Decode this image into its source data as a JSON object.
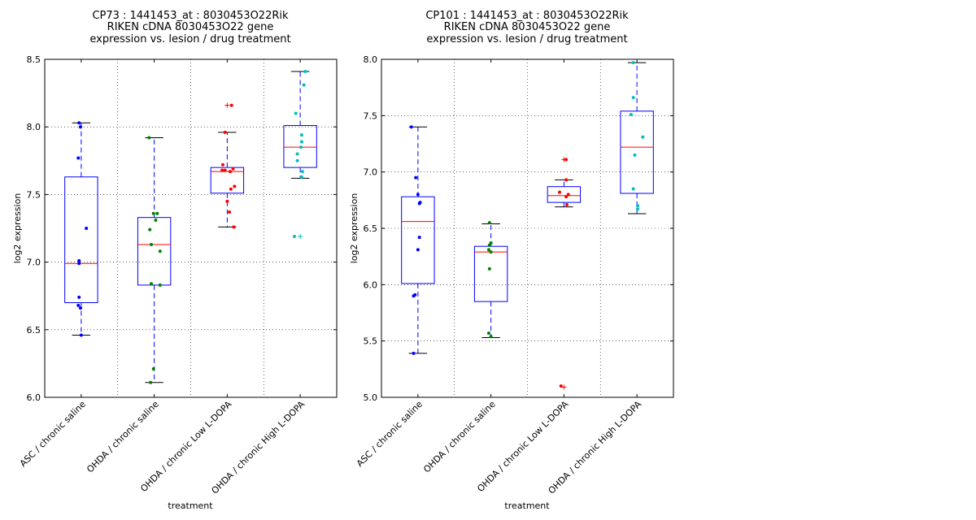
{
  "charts": [
    {
      "type": "box",
      "title_lines": [
        "CP73 : 1441453_at : 8030453O22Rik",
        "RIKEN cDNA 8030453O22 gene",
        "expression vs. lesion / drug treatment"
      ],
      "xlabel": "treatment",
      "ylabel": "log2 expression",
      "ylim": [
        6.0,
        8.5
      ],
      "yticks": [
        6.0,
        6.5,
        7.0,
        7.5,
        8.0,
        8.5
      ],
      "ytick_labels": [
        "6.0",
        "6.5",
        "7.0",
        "7.5",
        "8.0",
        "8.5"
      ],
      "grid": true,
      "categories": [
        "ASC / chronic saline",
        "OHDA / chronic saline",
        "OHDA / chronic Low L-DOPA",
        "OHDA / chronic High L-DOPA"
      ],
      "colors": [
        "#0000ff",
        "#008000",
        "#ff0000",
        "#00bfbf"
      ],
      "boxes": [
        {
          "whisker_low": 6.46,
          "q1": 6.7,
          "median": 6.99,
          "q3": 7.63,
          "whisker_high": 8.03,
          "outliers": []
        },
        {
          "whisker_low": 6.11,
          "q1": 6.83,
          "median": 7.13,
          "q3": 7.33,
          "whisker_high": 7.92,
          "outliers": []
        },
        {
          "whisker_low": 7.26,
          "q1": 7.51,
          "median": 7.67,
          "q3": 7.7,
          "whisker_high": 7.96,
          "outliers": [
            8.16
          ]
        },
        {
          "whisker_low": 7.62,
          "q1": 7.7,
          "median": 7.85,
          "q3": 8.01,
          "whisker_high": 8.41,
          "outliers": [
            7.19
          ]
        }
      ],
      "points": [
        [
          [
            -0.03,
            8.03
          ],
          [
            -0.01,
            8.0
          ],
          [
            -0.04,
            7.77
          ],
          [
            0.07,
            7.25
          ],
          [
            -0.03,
            7.01
          ],
          [
            -0.03,
            6.99
          ],
          [
            -0.03,
            6.74
          ],
          [
            -0.04,
            6.68
          ],
          [
            -0.01,
            6.66
          ],
          [
            0.0,
            6.46
          ]
        ],
        [
          [
            -0.07,
            7.92
          ],
          [
            -0.01,
            7.36
          ],
          [
            0.04,
            7.36
          ],
          [
            0.02,
            7.31
          ],
          [
            -0.06,
            7.24
          ],
          [
            -0.04,
            7.13
          ],
          [
            0.08,
            7.08
          ],
          [
            -0.04,
            6.84
          ],
          [
            0.08,
            6.83
          ],
          [
            -0.01,
            6.21
          ],
          [
            -0.05,
            6.11
          ]
        ],
        [
          [
            0.06,
            8.16
          ],
          [
            -0.03,
            7.96
          ],
          [
            -0.06,
            7.72
          ],
          [
            -0.07,
            7.68
          ],
          [
            -0.03,
            7.68
          ],
          [
            0.04,
            7.67
          ],
          [
            0.08,
            7.69
          ],
          [
            0.1,
            7.56
          ],
          [
            0.05,
            7.54
          ],
          [
            0.0,
            7.45
          ],
          [
            0.03,
            7.37
          ],
          [
            0.09,
            7.26
          ]
        ],
        [
          [
            0.07,
            8.41
          ],
          [
            0.05,
            8.31
          ],
          [
            -0.06,
            8.1
          ],
          [
            0.02,
            7.94
          ],
          [
            0.02,
            7.89
          ],
          [
            0.01,
            7.85
          ],
          [
            -0.04,
            7.8
          ],
          [
            -0.04,
            7.75
          ],
          [
            0.03,
            7.67
          ],
          [
            0.02,
            7.63
          ],
          [
            -0.08,
            7.19
          ]
        ]
      ]
    },
    {
      "type": "box",
      "title_lines": [
        "CP101 : 1441453_at : 8030453O22Rik",
        "RIKEN cDNA 8030453O22 gene",
        "expression vs. lesion / drug treatment"
      ],
      "xlabel": "treatment",
      "ylabel": "log2 expression",
      "ylim": [
        5.0,
        8.0
      ],
      "yticks": [
        5.0,
        5.5,
        6.0,
        6.5,
        7.0,
        7.5,
        8.0
      ],
      "ytick_labels": [
        "5.0",
        "5.5",
        "6.0",
        "6.5",
        "7.0",
        "7.5",
        "8.0"
      ],
      "grid": true,
      "categories": [
        "ASC / chronic saline",
        "OHDA / chronic saline",
        "OHDA / chronic Low L-DOPA",
        "OHDA / chronic High L-DOPA"
      ],
      "colors": [
        "#0000ff",
        "#008000",
        "#ff0000",
        "#00bfbf"
      ],
      "boxes": [
        {
          "whisker_low": 5.39,
          "q1": 6.01,
          "median": 6.56,
          "q3": 6.78,
          "whisker_high": 7.4,
          "outliers": []
        },
        {
          "whisker_low": 5.53,
          "q1": 5.85,
          "median": 6.29,
          "q3": 6.34,
          "whisker_high": 6.54,
          "outliers": []
        },
        {
          "whisker_low": 6.69,
          "q1": 6.73,
          "median": 6.79,
          "q3": 6.87,
          "whisker_high": 6.93,
          "outliers": [
            7.11,
            5.09
          ]
        },
        {
          "whisker_low": 6.63,
          "q1": 6.81,
          "median": 7.22,
          "q3": 7.54,
          "whisker_high": 7.97,
          "outliers": []
        }
      ],
      "points": [
        [
          [
            -0.09,
            7.4
          ],
          [
            -0.03,
            6.95
          ],
          [
            0.0,
            6.8
          ],
          [
            0.03,
            6.73
          ],
          [
            0.02,
            6.72
          ],
          [
            0.02,
            6.42
          ],
          [
            0.0,
            6.31
          ],
          [
            -0.04,
            5.91
          ],
          [
            -0.06,
            5.9
          ],
          [
            -0.06,
            5.39
          ]
        ],
        [
          [
            -0.02,
            6.55
          ],
          [
            0.0,
            6.37
          ],
          [
            -0.02,
            6.35
          ],
          [
            -0.03,
            6.31
          ],
          [
            0.0,
            6.29
          ],
          [
            -0.02,
            6.14
          ],
          [
            -0.03,
            5.57
          ],
          [
            0.0,
            5.54
          ]
        ],
        [
          [
            0.03,
            7.11
          ],
          [
            0.03,
            6.93
          ],
          [
            -0.06,
            6.82
          ],
          [
            0.06,
            6.8
          ],
          [
            0.03,
            6.78
          ],
          [
            0.04,
            6.71
          ],
          [
            -0.04,
            5.1
          ]
        ],
        [
          [
            -0.05,
            7.97
          ],
          [
            -0.05,
            7.66
          ],
          [
            -0.08,
            7.51
          ],
          [
            0.08,
            7.31
          ],
          [
            -0.03,
            7.15
          ],
          [
            -0.05,
            6.85
          ],
          [
            0.01,
            6.7
          ],
          [
            0.01,
            6.67
          ]
        ]
      ]
    }
  ]
}
